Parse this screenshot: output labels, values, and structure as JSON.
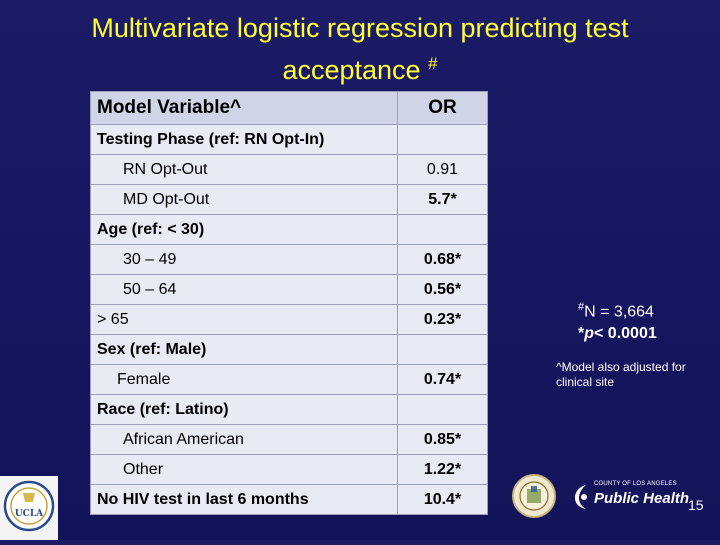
{
  "slide": {
    "title_line1": "Multivariate logistic regression predicting test",
    "title_line2": "acceptance",
    "title_mark": "#",
    "page_number": "15",
    "colors": {
      "background": "#161660",
      "title": "#ffff33",
      "table_header": "#cfd5e6",
      "table_body": "#e8ebf3"
    }
  },
  "table": {
    "header": {
      "col1": "Model Variable^",
      "col2": "OR"
    },
    "rows": [
      {
        "label": "Testing Phase (ref: RN Opt-In)",
        "value": ""
      },
      {
        "label": "RN Opt-Out",
        "value": "0.91"
      },
      {
        "label": "MD Opt-Out",
        "value": "5.7*"
      },
      {
        "label": "Age (ref: < 30)",
        "value": ""
      },
      {
        "label": "30 – 49",
        "value": "0.68*"
      },
      {
        "label": "50 – 64",
        "value": "0.56*"
      },
      {
        "label": "> 65",
        "value": "0.23*"
      },
      {
        "label": "Sex (ref: Male)",
        "value": ""
      },
      {
        "label": "Female",
        "value": "0.74*"
      },
      {
        "label": "Race (ref: Latino)",
        "value": ""
      },
      {
        "label": "African American",
        "value": "0.85*"
      },
      {
        "label": "Other",
        "value": "1.22*"
      },
      {
        "label": "No HIV test in last 6 months",
        "value": "10.4*"
      }
    ]
  },
  "notes": {
    "n_sup": "#",
    "n_text": "N = 3,664",
    "p_star": "*",
    "p_italic": "p",
    "p_text": "< 0.0001",
    "model_note": "^Model also adjusted for clinical site"
  },
  "logos": {
    "ucla_text": "UCLA",
    "ph_small": "COUNTY OF LOS ANGELES",
    "ph_big": "Public Health",
    "ucla_icon": "ucla-seal-icon",
    "la_icon": "la-county-seal-icon",
    "ph_icon": "public-health-logo-icon"
  }
}
